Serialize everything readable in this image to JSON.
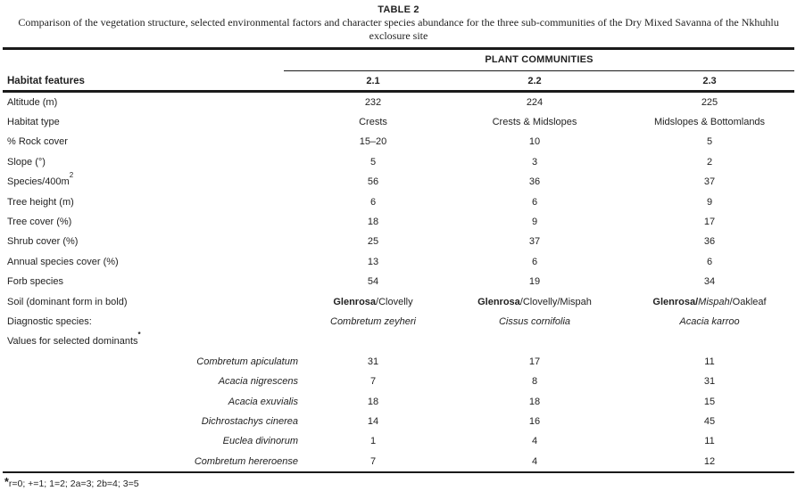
{
  "document": {
    "title": "TABLE 2",
    "caption_line1": "Comparison of the vegetation structure, selected environmental factors and character species abundance for the three sub-communities of the Dry Mixed Savanna of the Nkhuhlu",
    "caption_line2": "exclosure site",
    "footnote_marker": "*",
    "footnote_text": "r=0; +=1; 1=2; 2a=3; 2b=4; 3=5"
  },
  "table": {
    "group_header": "PLANT COMMUNITIES",
    "corner_label": "Habitat features",
    "columns": [
      "2.1",
      "2.2",
      "2.3"
    ],
    "rows": [
      {
        "label": "Altitude (m)",
        "values": [
          "232",
          "224",
          "225"
        ]
      },
      {
        "label": "Habitat type",
        "values": [
          "Crests",
          "Crests & Midslopes",
          "Midslopes & Bottomlands"
        ]
      },
      {
        "label": "% Rock cover",
        "values": [
          "15–20",
          "10",
          "5"
        ]
      },
      {
        "label": "Slope (°)",
        "values": [
          "5",
          "3",
          "2"
        ]
      },
      {
        "label": [
          {
            "t": "Species/400m"
          },
          {
            "t": "2",
            "sup": true
          }
        ],
        "values": [
          "56",
          "36",
          "37"
        ]
      },
      {
        "label": "Tree height (m)",
        "values": [
          "6",
          "6",
          "9"
        ]
      },
      {
        "label": "Tree cover (%)",
        "values": [
          "18",
          "9",
          "17"
        ]
      },
      {
        "label": "Shrub cover (%)",
        "values": [
          "25",
          "37",
          "36"
        ]
      },
      {
        "label": "Annual species cover (%)",
        "values": [
          "13",
          "6",
          "6"
        ]
      },
      {
        "label": "Forb species",
        "values": [
          "54",
          "19",
          "34"
        ]
      },
      {
        "label": "Soil (dominant form in bold)",
        "values": [
          [
            {
              "t": "Glenrosa",
              "b": true
            },
            {
              "t": "/Clovelly"
            }
          ],
          [
            {
              "t": "Glenrosa",
              "b": true
            },
            {
              "t": "/Clovelly/Mispah"
            }
          ],
          [
            {
              "t": "Glenrosa/",
              "b": true
            },
            {
              "t": "Mispah",
              "i": true
            },
            {
              "t": "/Oakleaf"
            }
          ]
        ]
      },
      {
        "label": "Diagnostic species:",
        "values": [
          [
            {
              "t": "Combretum zeyheri",
              "i": true
            }
          ],
          [
            {
              "t": "Cissus cornifolia",
              "i": true
            }
          ],
          [
            {
              "t": "Acacia karroo",
              "i": true
            }
          ]
        ]
      },
      {
        "label": [
          {
            "t": "Values for selected dominants"
          },
          {
            "t": "*",
            "sup": true,
            "b": true
          }
        ],
        "values": [
          "",
          "",
          ""
        ]
      },
      {
        "label": [
          {
            "t": "Combretum apiculatum",
            "i": true
          }
        ],
        "indent": true,
        "values": [
          "31",
          "17",
          "11"
        ]
      },
      {
        "label": [
          {
            "t": "Acacia nigrescens",
            "i": true
          }
        ],
        "indent": true,
        "values": [
          "7",
          "8",
          "31"
        ]
      },
      {
        "label": [
          {
            "t": "Acacia exuvialis",
            "i": true
          }
        ],
        "indent": true,
        "values": [
          "18",
          "18",
          "15"
        ]
      },
      {
        "label": [
          {
            "t": "Dichrostachys cinerea",
            "i": true
          }
        ],
        "indent": true,
        "values": [
          "14",
          "16",
          "45"
        ]
      },
      {
        "label": [
          {
            "t": "Euclea divinorum",
            "i": true
          }
        ],
        "indent": true,
        "values": [
          "1",
          "4",
          "11"
        ]
      },
      {
        "label": [
          {
            "t": "Combretum hereroense",
            "i": true
          }
        ],
        "indent": true,
        "values": [
          "7",
          "4",
          "12"
        ]
      }
    ]
  },
  "colors": {
    "text": "#1f1f1f",
    "rule": "#1a1a1a"
  }
}
